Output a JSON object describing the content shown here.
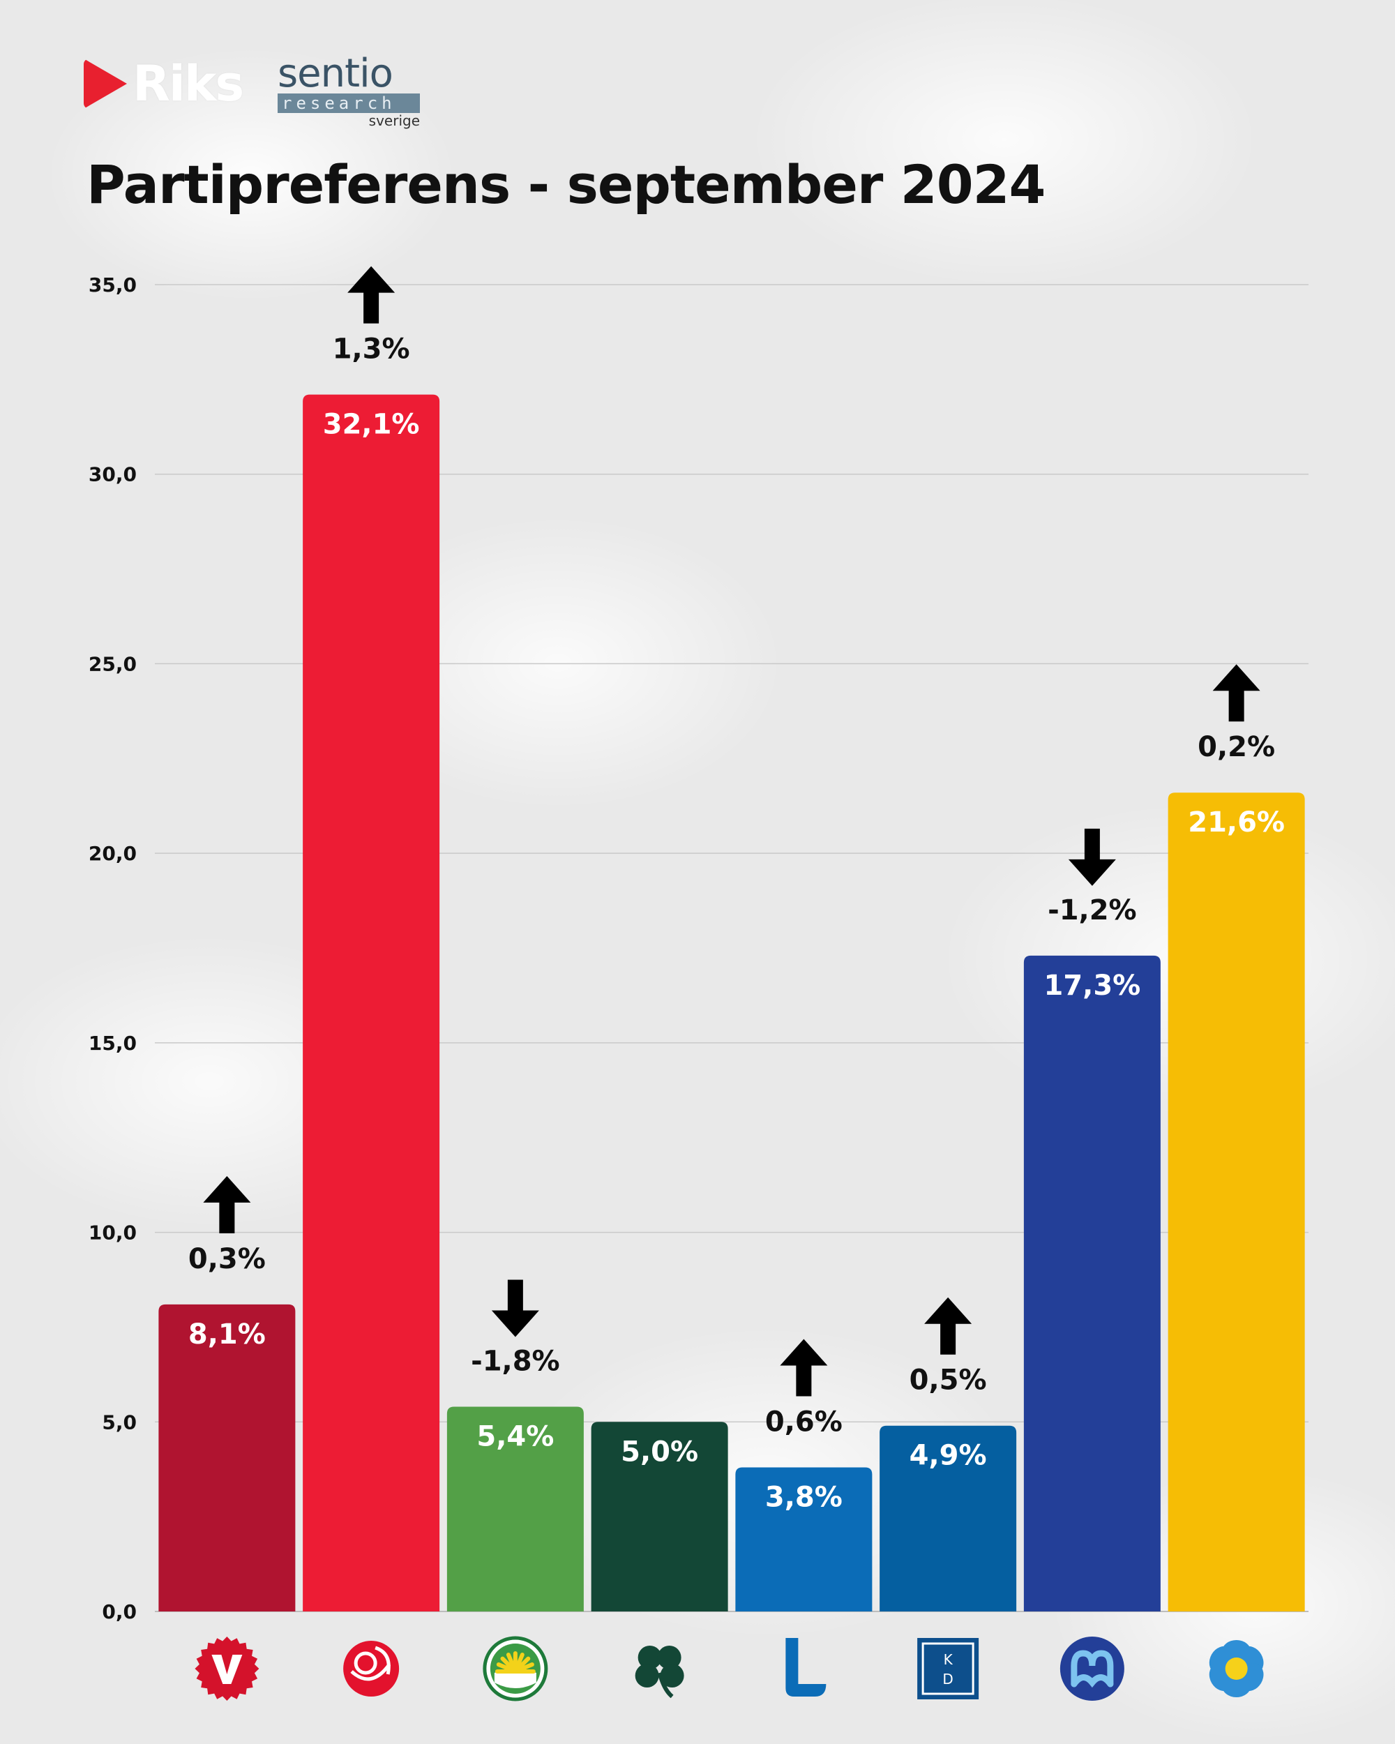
{
  "header": {
    "brand_primary": "Riks",
    "brand_secondary": "sentio",
    "brand_secondary_sub": "research",
    "brand_secondary_region": "sverige",
    "title": "Partipreferens - september 2024"
  },
  "colors": {
    "riks_red": "#e8202f",
    "sentio_blue": "#3a5366"
  },
  "chart_data": {
    "type": "bar",
    "title": "Partipreferens - september 2024",
    "xlabel": "",
    "ylabel": "",
    "ylim": [
      0,
      35
    ],
    "y_ticks": [
      0,
      5,
      10,
      15,
      20,
      25,
      30,
      35
    ],
    "y_tick_labels": [
      "0,0",
      "5,0",
      "10,0",
      "15,0",
      "20,0",
      "25,0",
      "30,0",
      "35,0"
    ],
    "grid": true,
    "legend": "none",
    "categories": [
      "V",
      "S",
      "MP",
      "C",
      "L",
      "KD",
      "M",
      "SD"
    ],
    "values": [
      8.1,
      32.1,
      5.4,
      5.0,
      3.8,
      4.9,
      17.3,
      21.6
    ],
    "value_labels": [
      "8,1%",
      "32,1%",
      "5,4%",
      "5,0%",
      "3,8%",
      "4,9%",
      "17,3%",
      "21,6%"
    ],
    "changes": [
      0.3,
      1.3,
      -1.8,
      null,
      0.6,
      0.5,
      -1.2,
      0.2
    ],
    "change_labels": [
      "0,3%",
      "1,3%",
      "-1,8%",
      "",
      "0,6%",
      "0,5%",
      "-1,2%",
      "0,2%"
    ],
    "colors": [
      "#b01430",
      "#ed1c34",
      "#53a047",
      "#134736",
      "#0b6cb7",
      "#055fa0",
      "#233f98",
      "#f6bd05"
    ],
    "icons": [
      "v-party-logo-icon",
      "rose-logo-icon",
      "sun-logo-icon",
      "clover-logo-icon",
      "l-logo-icon",
      "kd-logo-icon",
      "m-logo-icon",
      "anemone-flower-icon"
    ]
  }
}
